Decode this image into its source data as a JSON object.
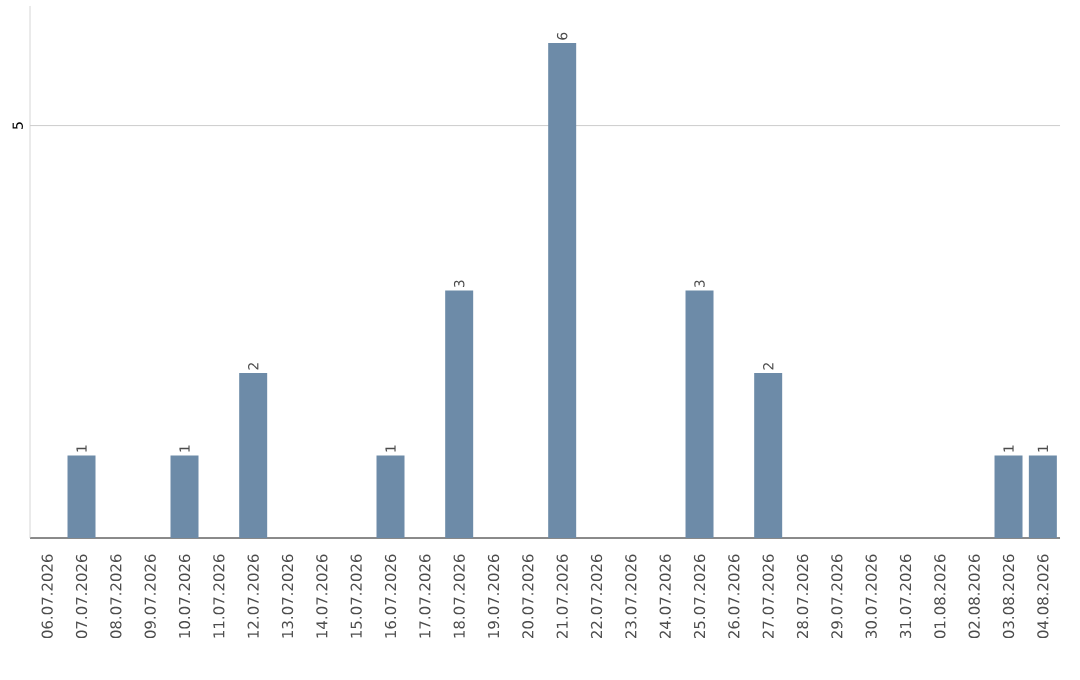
{
  "chart_data": {
    "type": "bar",
    "categories": [
      "06.07.2026",
      "07.07.2026",
      "08.07.2026",
      "09.07.2026",
      "10.07.2026",
      "11.07.2026",
      "12.07.2026",
      "13.07.2026",
      "14.07.2026",
      "15.07.2026",
      "16.07.2026",
      "17.07.2026",
      "18.07.2026",
      "19.07.2026",
      "20.07.2026",
      "21.07.2026",
      "22.07.2026",
      "23.07.2026",
      "24.07.2026",
      "25.07.2026",
      "26.07.2026",
      "27.07.2026",
      "28.07.2026",
      "29.07.2026",
      "30.07.2026",
      "31.07.2026",
      "01.08.2026",
      "02.08.2026",
      "03.08.2026",
      "04.08.2026"
    ],
    "values": [
      0,
      1,
      0,
      0,
      1,
      0,
      2,
      0,
      0,
      0,
      1,
      0,
      3,
      0,
      0,
      6,
      0,
      0,
      0,
      3,
      0,
      2,
      0,
      0,
      0,
      0,
      0,
      0,
      1,
      1
    ],
    "value_labels": [
      null,
      "1",
      null,
      null,
      "1",
      null,
      "2",
      null,
      null,
      null,
      "1",
      null,
      "3",
      null,
      null,
      "6",
      null,
      null,
      null,
      "3",
      null,
      "2",
      null,
      null,
      null,
      null,
      null,
      null,
      "1",
      "1"
    ],
    "color": "#6d8ba8",
    "ylim": [
      0,
      6.45
    ],
    "yticks": [
      {
        "value": 0,
        "label": null
      },
      5
    ],
    "grid": "y"
  }
}
